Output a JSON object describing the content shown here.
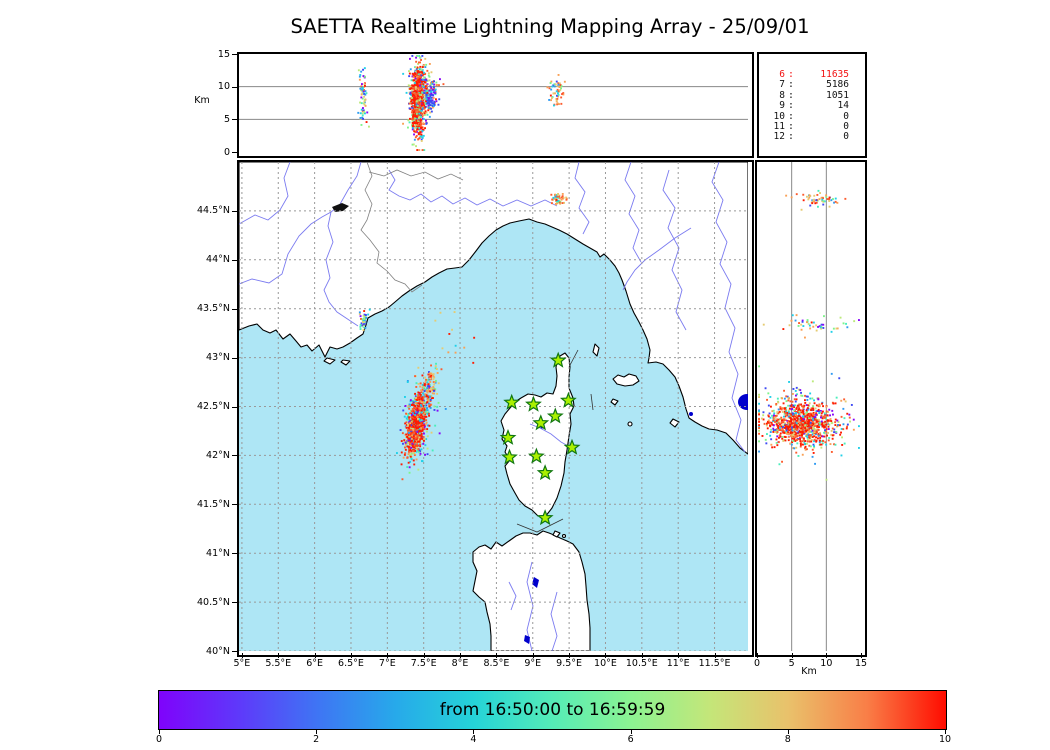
{
  "title": "SAETTA Realtime Lightning Mapping Array - 25/09/01",
  "axes": {
    "km_label": "Km",
    "alt_range": [
      0,
      15
    ],
    "alt_ticks": [
      {
        "v": 0,
        "label": "0"
      },
      {
        "v": 5,
        "label": "5"
      },
      {
        "v": 10,
        "label": "10"
      },
      {
        "v": 15,
        "label": "15"
      }
    ],
    "grid_alt": [
      5,
      10
    ],
    "lon_range": [
      4.96,
      11.96
    ],
    "lon_ticks": [
      {
        "v": 5,
        "label": "5°E"
      },
      {
        "v": 5.5,
        "label": "5.5°E"
      },
      {
        "v": 6,
        "label": "6°E"
      },
      {
        "v": 6.5,
        "label": "6.5°E"
      },
      {
        "v": 7,
        "label": "7°E"
      },
      {
        "v": 7.5,
        "label": "7.5°E"
      },
      {
        "v": 8,
        "label": "8°E"
      },
      {
        "v": 8.5,
        "label": "8.5°E"
      },
      {
        "v": 9,
        "label": "9°E"
      },
      {
        "v": 9.5,
        "label": "9.5°E"
      },
      {
        "v": 10,
        "label": "10°E"
      },
      {
        "v": 10.5,
        "label": "10.5°E"
      },
      {
        "v": 11,
        "label": "11°E"
      },
      {
        "v": 11.5,
        "label": "11.5°E"
      }
    ],
    "lat_range": [
      40,
      45
    ],
    "lat_ticks": [
      {
        "v": 44.5,
        "label": "44.5°N"
      },
      {
        "v": 44,
        "label": "44°N"
      },
      {
        "v": 43.5,
        "label": "43.5°N"
      },
      {
        "v": 43,
        "label": "43°N"
      },
      {
        "v": 42.5,
        "label": "42.5°N"
      },
      {
        "v": 42,
        "label": "42°N"
      },
      {
        "v": 41.5,
        "label": "41.5°N"
      },
      {
        "v": 41,
        "label": "41°N"
      },
      {
        "v": 40.5,
        "label": "40.5°N"
      },
      {
        "v": 40,
        "label": "40°N"
      }
    ]
  },
  "stats_panel": {
    "rows": [
      {
        "level": "6",
        "count": "11635",
        "highlight": true
      },
      {
        "level": "7",
        "count": "5186",
        "highlight": false
      },
      {
        "level": "8",
        "count": "1051",
        "highlight": false
      },
      {
        "level": "9",
        "count": "14",
        "highlight": false
      },
      {
        "level": "10",
        "count": "0",
        "highlight": false
      },
      {
        "level": "11",
        "count": "0",
        "highlight": false
      },
      {
        "level": "12",
        "count": "0",
        "highlight": false
      }
    ],
    "highlight_color": "#f21111"
  },
  "colorbar": {
    "label": "from 16:50:00 to 16:59:59",
    "ticks": [
      {
        "v": 0,
        "label": "0"
      },
      {
        "v": 2,
        "label": "2"
      },
      {
        "v": 4,
        "label": "4"
      },
      {
        "v": 6,
        "label": "6"
      },
      {
        "v": 8,
        "label": "8"
      },
      {
        "v": 10,
        "label": "10"
      }
    ],
    "range": [
      0,
      10
    ],
    "gradient": [
      "#7f03fb",
      "#5f38fa",
      "#3f74f4",
      "#27a9ea",
      "#25d3d8",
      "#55ecb7",
      "#8cf392",
      "#c4e679",
      "#e9c16b",
      "#f97e47",
      "#ff0c00"
    ]
  },
  "map_colors": {
    "sea": "#aee6f5",
    "land": "#ffffff",
    "coast": "#000000",
    "river": "#7b7bf0",
    "border": "#808080",
    "lake": "#0000cc",
    "grid": "#999999",
    "station_fill": "#aaf000",
    "station_stroke": "#117711"
  },
  "chart_data": {
    "type": "scatter",
    "title": "SAETTA Realtime Lightning Mapping Array - 25/09/01",
    "time_window": "from 16:50:00 to 16:59:59",
    "colorbar_axis": {
      "range": [
        0,
        10
      ],
      "ticks": [
        0,
        2,
        4,
        6,
        8,
        10
      ]
    },
    "source_counts_by_min_stations": {
      "6": 11635,
      "7": 5186,
      "8": 1051,
      "9": 14,
      "10": 0,
      "11": 0,
      "12": 0
    },
    "panels": [
      {
        "id": "alt_lon",
        "x": "longitude_deg_E",
        "x_range": [
          4.96,
          11.96
        ],
        "y": "altitude_km",
        "y_range": [
          0,
          15
        ],
        "grid": "solid_at_5_10"
      },
      {
        "id": "map",
        "x": "longitude_deg_E",
        "x_range": [
          4.96,
          11.96
        ],
        "y": "latitude_deg_N",
        "y_range": [
          40,
          45
        ],
        "grid": "dashed_0.5deg"
      },
      {
        "id": "alt_lat",
        "x": "altitude_km",
        "x_range": [
          0,
          15
        ],
        "y": "latitude_deg_N",
        "y_range": [
          40,
          45
        ],
        "grid": "solid_at_5_10"
      }
    ],
    "stations_lon_lat": [
      [
        9.35,
        42.97
      ],
      [
        8.71,
        42.54
      ],
      [
        9.01,
        42.52
      ],
      [
        9.49,
        42.56
      ],
      [
        9.31,
        42.4
      ],
      [
        9.11,
        42.33
      ],
      [
        8.66,
        42.18
      ],
      [
        9.54,
        42.08
      ],
      [
        8.68,
        41.98
      ],
      [
        9.05,
        41.99
      ],
      [
        9.17,
        41.82
      ],
      [
        9.17,
        41.36
      ]
    ],
    "seed": 1337,
    "point_size": 1.9,
    "palettes": {
      "storm": [
        [
          "#fe1b00",
          45
        ],
        [
          "#fc5c2e",
          22
        ],
        [
          "#f9a055",
          6
        ],
        [
          "#e5cb72",
          6
        ],
        [
          "#bce97c",
          3
        ],
        [
          "#7ef48a",
          3
        ],
        [
          "#49eebb",
          3
        ],
        [
          "#20d0e8",
          3
        ],
        [
          "#2f9bf2",
          2
        ],
        [
          "#3d49f3",
          4
        ],
        [
          "#8805f7",
          3
        ]
      ],
      "mixed": [
        [
          "#8805f7",
          12
        ],
        [
          "#3d49f3",
          12
        ],
        [
          "#2f9bf2",
          10
        ],
        [
          "#20d0e8",
          12
        ],
        [
          "#49eebb",
          10
        ],
        [
          "#7ef48a",
          10
        ],
        [
          "#bce97c",
          8
        ],
        [
          "#e5cb72",
          10
        ],
        [
          "#f9a055",
          8
        ],
        [
          "#fc5c2e",
          6
        ],
        [
          "#fe1b00",
          2
        ]
      ],
      "warm": [
        [
          "#f9a055",
          22
        ],
        [
          "#fc5c2e",
          18
        ],
        [
          "#e5cb72",
          18
        ],
        [
          "#fe1b00",
          8
        ],
        [
          "#20d0e8",
          10
        ],
        [
          "#49eebb",
          6
        ],
        [
          "#7ef48a",
          8
        ],
        [
          "#2f9bf2",
          4
        ],
        [
          "#3d49f3",
          3
        ],
        [
          "#8805f7",
          3
        ]
      ],
      "blue": [
        [
          "#3d49f3",
          55
        ],
        [
          "#8805f7",
          18
        ],
        [
          "#2f9bf2",
          15
        ],
        [
          "#20d0e8",
          12
        ]
      ]
    },
    "clusters": [
      {
        "panel": "map",
        "n": 260,
        "x": 7.42,
        "y": 42.34,
        "sx": 0.09,
        "sy": 0.16,
        "tx": 0.05,
        "ty": 0.12,
        "palette": "mixed"
      },
      {
        "panel": "map",
        "n": 130,
        "x": 7.57,
        "y": 42.68,
        "sx": 0.06,
        "sy": 0.07,
        "tx": 0.05,
        "ty": 0.09,
        "palette": "warm"
      },
      {
        "panel": "map",
        "n": 780,
        "x": 7.4,
        "y": 42.3,
        "sx": 0.05,
        "sy": 0.1,
        "tx": 0.04,
        "ty": 0.11,
        "palette": "storm"
      },
      {
        "panel": "map",
        "n": 55,
        "x": 9.35,
        "y": 44.62,
        "sx": 0.05,
        "sy": 0.04,
        "tx": 0,
        "ty": 0,
        "palette": "warm"
      },
      {
        "panel": "map",
        "n": 40,
        "x": 6.68,
        "y": 43.37,
        "sx": 0.035,
        "sy": 0.05,
        "tx": 0,
        "ty": 0,
        "palette": "mixed"
      },
      {
        "panel": "map",
        "n": 12,
        "x": 7.97,
        "y": 43.15,
        "sx": 0.2,
        "sy": 0.17,
        "tx": 0,
        "ty": 0,
        "palette": "warm"
      },
      {
        "panel": "alt_lon",
        "n": 260,
        "x": 7.43,
        "y": 8.4,
        "sx": 0.085,
        "sy": 3.0,
        "tx": 0,
        "ty": 0,
        "palette": "mixed"
      },
      {
        "panel": "alt_lon",
        "n": 90,
        "x": 7.56,
        "y": 9.2,
        "sx": 0.08,
        "sy": 1.5,
        "tx": 0,
        "ty": 0,
        "palette": "warm"
      },
      {
        "panel": "alt_lon",
        "n": 800,
        "x": 7.42,
        "y": 7.8,
        "sx": 0.042,
        "sy": 2.4,
        "tx": 0,
        "ty": 0,
        "palette": "storm"
      },
      {
        "panel": "alt_lon",
        "n": 70,
        "x": 7.6,
        "y": 8.3,
        "sx": 0.05,
        "sy": 0.9,
        "tx": 0,
        "ty": 0,
        "palette": "blue"
      },
      {
        "panel": "alt_lon",
        "n": 70,
        "x": 6.67,
        "y": 8.6,
        "sx": 0.03,
        "sy": 1.9,
        "tx": 0,
        "ty": 0,
        "palette": "mixed"
      },
      {
        "panel": "alt_lon",
        "n": 55,
        "x": 9.33,
        "y": 9.2,
        "sx": 0.05,
        "sy": 1.2,
        "tx": 0,
        "ty": 0,
        "palette": "warm"
      },
      {
        "panel": "alt_lat",
        "n": 260,
        "x": 7.0,
        "y": 42.36,
        "sx": 3.2,
        "sy": 0.17,
        "tx": 0,
        "ty": 0,
        "palette": "mixed"
      },
      {
        "panel": "alt_lat",
        "n": 800,
        "x": 6.2,
        "y": 42.31,
        "sx": 2.4,
        "sy": 0.1,
        "tx": 0,
        "ty": 0,
        "palette": "storm"
      },
      {
        "panel": "alt_lat",
        "n": 55,
        "x": 8.8,
        "y": 44.62,
        "sx": 1.5,
        "sy": 0.035,
        "tx": 0,
        "ty": 0,
        "palette": "warm"
      },
      {
        "panel": "alt_lat",
        "n": 45,
        "x": 8.5,
        "y": 43.35,
        "sx": 2.6,
        "sy": 0.05,
        "tx": 0,
        "ty": 0,
        "palette": "mixed"
      }
    ]
  }
}
